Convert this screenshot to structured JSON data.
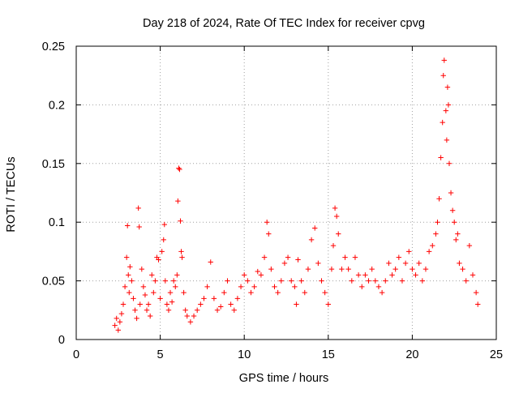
{
  "chart_data": {
    "type": "scatter",
    "title": "Day 218 of 2024, Rate Of TEC Index for receiver cpvg",
    "xlabel": "GPS time / hours",
    "ylabel": "ROTI / TECUs",
    "xlim": [
      0,
      25
    ],
    "ylim": [
      0,
      0.25
    ],
    "xticks": [
      0,
      5,
      10,
      15,
      20,
      25
    ],
    "xtick_labels": [
      "0",
      "5",
      "10",
      "15",
      "20",
      "25"
    ],
    "yticks": [
      0,
      0.05,
      0.1,
      0.15,
      0.2,
      0.25
    ],
    "ytick_labels": [
      "0",
      "0.05",
      "0.1",
      "0.15",
      "0.2",
      "0.25"
    ],
    "grid": true,
    "marker": "plus",
    "color": "#ff0000",
    "series": [
      {
        "values": [
          [
            2.3,
            0.012
          ],
          [
            2.4,
            0.018
          ],
          [
            2.5,
            0.008
          ],
          [
            2.6,
            0.015
          ],
          [
            2.7,
            0.022
          ],
          [
            2.8,
            0.03
          ],
          [
            2.9,
            0.045
          ],
          [
            3.0,
            0.07
          ],
          [
            3.05,
            0.097
          ],
          [
            3.1,
            0.055
          ],
          [
            3.15,
            0.04
          ],
          [
            3.2,
            0.062
          ],
          [
            3.3,
            0.05
          ],
          [
            3.4,
            0.035
          ],
          [
            3.5,
            0.025
          ],
          [
            3.6,
            0.018
          ],
          [
            3.7,
            0.112
          ],
          [
            3.75,
            0.096
          ],
          [
            3.8,
            0.03
          ],
          [
            3.9,
            0.06
          ],
          [
            4.0,
            0.045
          ],
          [
            4.1,
            0.038
          ],
          [
            4.2,
            0.025
          ],
          [
            4.3,
            0.03
          ],
          [
            4.4,
            0.02
          ],
          [
            4.5,
            0.055
          ],
          [
            4.6,
            0.04
          ],
          [
            4.7,
            0.05
          ],
          [
            4.8,
            0.07
          ],
          [
            4.9,
            0.068
          ],
          [
            5.0,
            0.035
          ],
          [
            5.1,
            0.075
          ],
          [
            5.2,
            0.085
          ],
          [
            5.25,
            0.098
          ],
          [
            5.3,
            0.05
          ],
          [
            5.4,
            0.03
          ],
          [
            5.5,
            0.025
          ],
          [
            5.6,
            0.04
          ],
          [
            5.7,
            0.032
          ],
          [
            5.8,
            0.05
          ],
          [
            5.9,
            0.045
          ],
          [
            6.0,
            0.055
          ],
          [
            6.05,
            0.118
          ],
          [
            6.1,
            0.146
          ],
          [
            6.15,
            0.145
          ],
          [
            6.2,
            0.101
          ],
          [
            6.25,
            0.075
          ],
          [
            6.3,
            0.07
          ],
          [
            6.4,
            0.04
          ],
          [
            6.5,
            0.025
          ],
          [
            6.6,
            0.02
          ],
          [
            6.8,
            0.015
          ],
          [
            7.0,
            0.02
          ],
          [
            7.2,
            0.025
          ],
          [
            7.4,
            0.03
          ],
          [
            7.6,
            0.035
          ],
          [
            7.8,
            0.045
          ],
          [
            8.0,
            0.066
          ],
          [
            8.2,
            0.035
          ],
          [
            8.4,
            0.025
          ],
          [
            8.6,
            0.028
          ],
          [
            8.8,
            0.04
          ],
          [
            9.0,
            0.05
          ],
          [
            9.2,
            0.03
          ],
          [
            9.4,
            0.025
          ],
          [
            9.6,
            0.035
          ],
          [
            9.8,
            0.045
          ],
          [
            10.0,
            0.055
          ],
          [
            10.2,
            0.05
          ],
          [
            10.4,
            0.04
          ],
          [
            10.6,
            0.045
          ],
          [
            10.8,
            0.058
          ],
          [
            11.0,
            0.055
          ],
          [
            11.2,
            0.07
          ],
          [
            11.35,
            0.1
          ],
          [
            11.45,
            0.09
          ],
          [
            11.6,
            0.06
          ],
          [
            11.8,
            0.045
          ],
          [
            12.0,
            0.04
          ],
          [
            12.2,
            0.05
          ],
          [
            12.4,
            0.065
          ],
          [
            12.6,
            0.07
          ],
          [
            12.8,
            0.05
          ],
          [
            13.0,
            0.045
          ],
          [
            13.1,
            0.03
          ],
          [
            13.2,
            0.068
          ],
          [
            13.4,
            0.05
          ],
          [
            13.6,
            0.04
          ],
          [
            13.8,
            0.06
          ],
          [
            14.0,
            0.085
          ],
          [
            14.2,
            0.095
          ],
          [
            14.4,
            0.065
          ],
          [
            14.6,
            0.05
          ],
          [
            14.8,
            0.04
          ],
          [
            15.0,
            0.03
          ],
          [
            15.2,
            0.06
          ],
          [
            15.3,
            0.08
          ],
          [
            15.4,
            0.112
          ],
          [
            15.5,
            0.105
          ],
          [
            15.6,
            0.09
          ],
          [
            15.8,
            0.06
          ],
          [
            16.0,
            0.07
          ],
          [
            16.2,
            0.06
          ],
          [
            16.4,
            0.05
          ],
          [
            16.6,
            0.07
          ],
          [
            16.8,
            0.055
          ],
          [
            17.0,
            0.045
          ],
          [
            17.2,
            0.055
          ],
          [
            17.4,
            0.05
          ],
          [
            17.6,
            0.06
          ],
          [
            17.8,
            0.05
          ],
          [
            18.0,
            0.045
          ],
          [
            18.2,
            0.04
          ],
          [
            18.4,
            0.05
          ],
          [
            18.6,
            0.065
          ],
          [
            18.8,
            0.055
          ],
          [
            19.0,
            0.06
          ],
          [
            19.2,
            0.07
          ],
          [
            19.4,
            0.05
          ],
          [
            19.6,
            0.065
          ],
          [
            19.8,
            0.075
          ],
          [
            20.0,
            0.06
          ],
          [
            20.2,
            0.055
          ],
          [
            20.4,
            0.065
          ],
          [
            20.6,
            0.05
          ],
          [
            20.8,
            0.06
          ],
          [
            21.0,
            0.075
          ],
          [
            21.2,
            0.08
          ],
          [
            21.4,
            0.09
          ],
          [
            21.5,
            0.1
          ],
          [
            21.6,
            0.12
          ],
          [
            21.7,
            0.155
          ],
          [
            21.8,
            0.185
          ],
          [
            21.85,
            0.225
          ],
          [
            21.9,
            0.238
          ],
          [
            22.0,
            0.195
          ],
          [
            22.05,
            0.17
          ],
          [
            22.1,
            0.215
          ],
          [
            22.15,
            0.2
          ],
          [
            22.2,
            0.15
          ],
          [
            22.3,
            0.125
          ],
          [
            22.4,
            0.11
          ],
          [
            22.5,
            0.1
          ],
          [
            22.6,
            0.085
          ],
          [
            22.7,
            0.09
          ],
          [
            22.8,
            0.065
          ],
          [
            23.0,
            0.06
          ],
          [
            23.2,
            0.05
          ],
          [
            23.4,
            0.08
          ],
          [
            23.6,
            0.055
          ],
          [
            23.8,
            0.04
          ],
          [
            23.9,
            0.03
          ]
        ]
      }
    ]
  }
}
